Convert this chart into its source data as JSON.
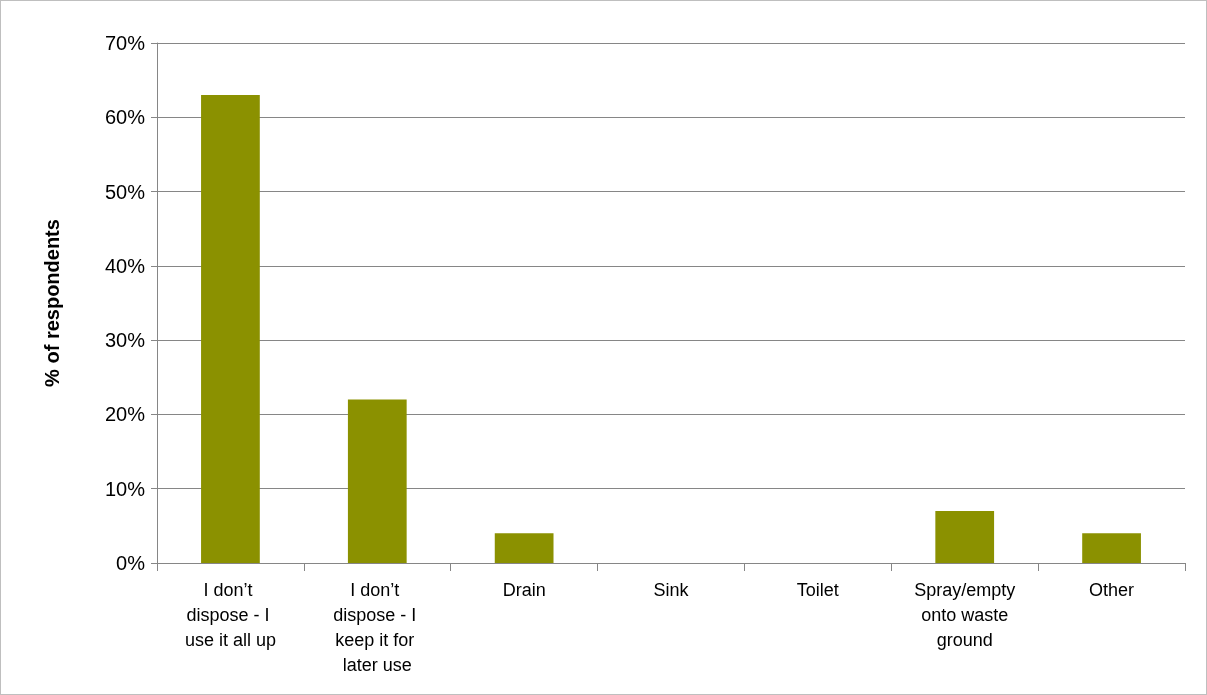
{
  "chart_data": {
    "type": "bar",
    "ylabel": "% of respondents",
    "categories": [
      "I don’t dispose - I use it all up",
      "I don’t dispose - I keep it for later use",
      "Drain",
      "Sink",
      "Toilet",
      "Spray/empty onto waste ground",
      "Other"
    ],
    "values": [
      63,
      22,
      4,
      0,
      0,
      7,
      4
    ],
    "color": "#8b9100",
    "ylim": [
      0,
      70
    ],
    "yticks": [
      {
        "value": 0,
        "label": "0%"
      },
      {
        "value": 10,
        "label": "10%"
      },
      {
        "value": 20,
        "label": "20%"
      },
      {
        "value": 30,
        "label": "30%"
      },
      {
        "value": 40,
        "label": "40%"
      },
      {
        "value": 50,
        "label": "50%"
      },
      {
        "value": 60,
        "label": "60%"
      },
      {
        "value": 70,
        "label": "70%"
      }
    ],
    "grid": "y"
  }
}
